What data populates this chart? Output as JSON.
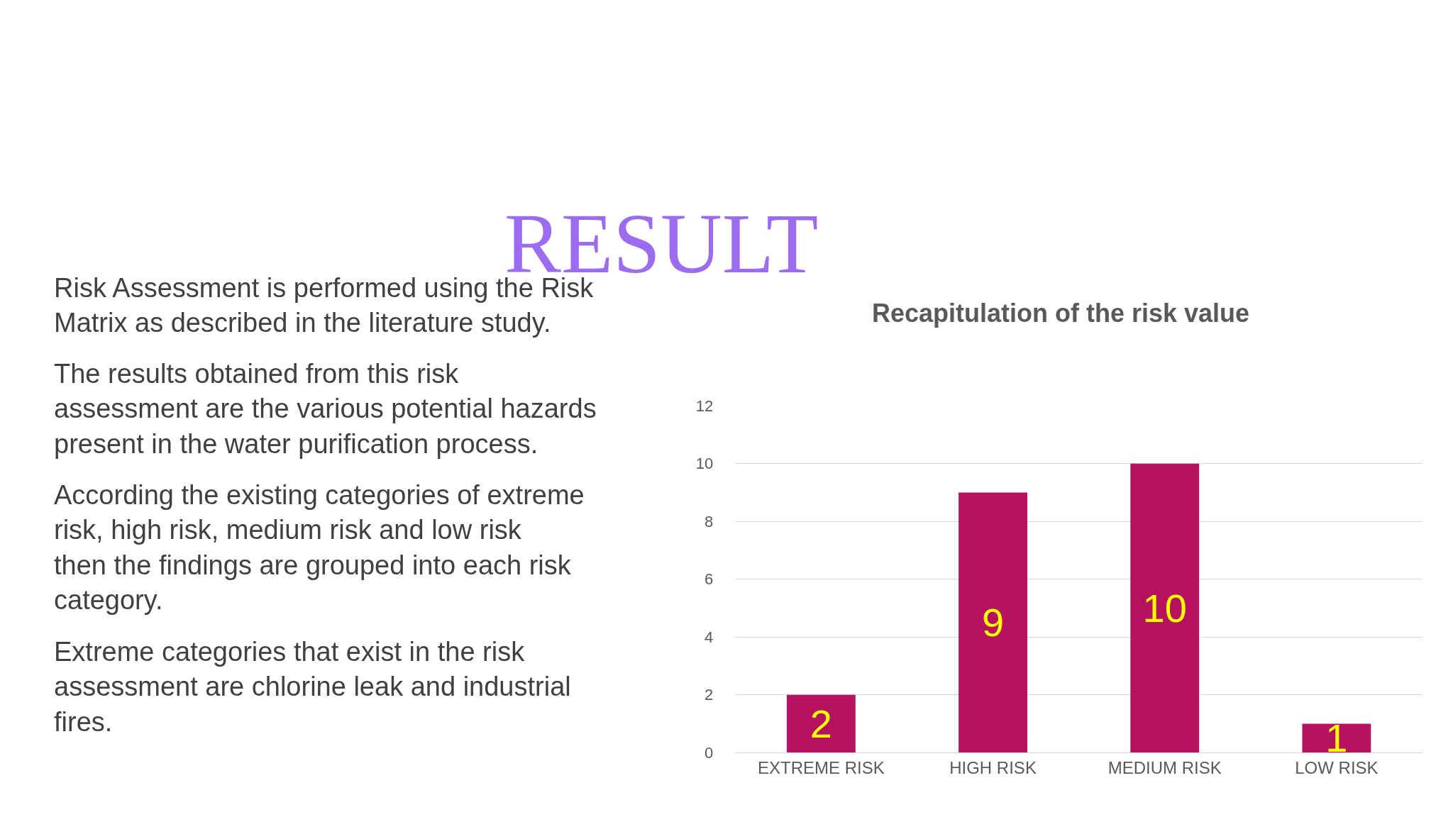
{
  "chart_data": {
    "type": "bar",
    "title": "Recapitulation of the risk value",
    "categories": [
      "EXTREME RISK",
      "HIGH RISK",
      "MEDIUM RISK",
      "LOW RISK"
    ],
    "values": [
      2,
      9,
      10,
      1
    ],
    "color": "#b5135f",
    "ylim": [
      0,
      12
    ],
    "yticks": [
      0,
      2,
      4,
      6,
      8,
      10,
      12
    ],
    "grid": "y",
    "data_labels": true,
    "legend": false,
    "annotations": [
      "RESULT",
      "Risk Assessment is performed using the Risk Matrix as described in the literature study.",
      "The results obtained from this risk assessment are the various potential hazards present in the water purification process.",
      "According the existing categories of extreme risk, high risk, medium risk and low risk then the findings are grouped into each risk category.",
      "Extreme categories that exist in the risk assessment are chlorine leak and industrial fires."
    ]
  }
}
